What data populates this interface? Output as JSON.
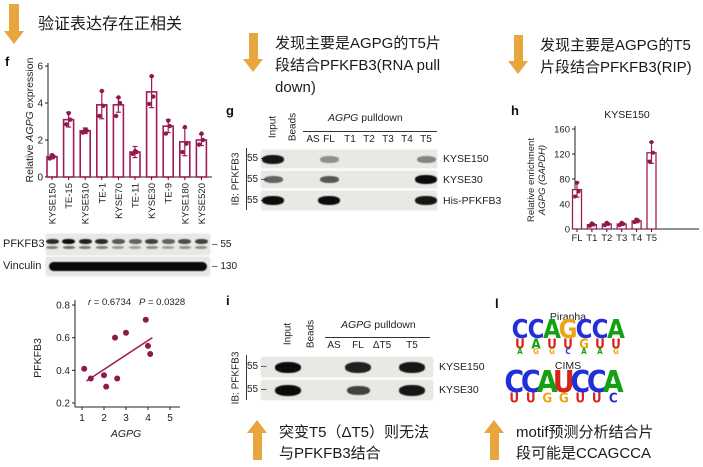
{
  "panels": {
    "f": "f",
    "g": "g",
    "h": "h",
    "i": "i",
    "l": "l"
  },
  "notes": {
    "top_left": {
      "lines": [
        "验证表达存在正相关"
      ]
    },
    "mid_top": {
      "lines": [
        "发现主要是AGPG的T5片",
        "段结合PFKFB3(RNA pull",
        "down)"
      ]
    },
    "right_top": {
      "lines": [
        "发现主要是AGPG的T5",
        "片段结合PFKFB3(RIP)"
      ]
    },
    "mid_bottom": {
      "lines": [
        "突变T5（ΔT5）则无法",
        "与PFKFB3结合"
      ]
    },
    "right_bottom": {
      "lines": [
        "motif预测分析结合片",
        "段可能是CCAGCCA"
      ]
    }
  },
  "chart_data": [
    {
      "id": "f_bar",
      "type": "bar",
      "ylabel_parts": [
        "Relative ",
        "AGPG",
        " expression"
      ],
      "categories": [
        "KYSE150",
        "TE-15",
        "KYSE510",
        "TE-1",
        "KYSE70",
        "TE-11",
        "KYSE30",
        "TE-9",
        "KYSE180",
        "KYSE520"
      ],
      "values": [
        1.1,
        3.1,
        2.5,
        3.9,
        3.9,
        1.35,
        4.6,
        2.75,
        1.9,
        2.0
      ],
      "errors": [
        0.12,
        0.4,
        0.15,
        0.75,
        0.4,
        0.3,
        0.85,
        0.35,
        0.75,
        0.3
      ],
      "points": [
        [
          1.0,
          1.1,
          1.18
        ],
        [
          2.85,
          3.1,
          3.45
        ],
        [
          2.4,
          2.5,
          2.55
        ],
        [
          3.3,
          3.85,
          4.65
        ],
        [
          3.3,
          4.0,
          4.3
        ],
        [
          1.25,
          1.35,
          1.4
        ],
        [
          3.95,
          4.35,
          5.45
        ],
        [
          2.35,
          2.75,
          3.05
        ],
        [
          1.35,
          1.8,
          2.7
        ],
        [
          1.75,
          2.0,
          2.35
        ]
      ],
      "ylim": [
        0,
        6
      ],
      "yticks": [
        0,
        2,
        4,
        6
      ]
    },
    {
      "id": "corr_scatter",
      "type": "scatter",
      "xlabel": "AGPG",
      "ylabel": "PFKFB3",
      "r_label": "r",
      "r_value": " = 0.6734",
      "p_label": "P",
      "p_value": " = 0.0328",
      "points": [
        [
          1.1,
          0.41
        ],
        [
          1.4,
          0.35
        ],
        [
          2.0,
          0.37
        ],
        [
          2.1,
          0.3
        ],
        [
          2.5,
          0.6
        ],
        [
          2.6,
          0.35
        ],
        [
          3.0,
          0.63
        ],
        [
          3.9,
          0.71
        ],
        [
          4.0,
          0.55
        ],
        [
          4.1,
          0.5
        ]
      ],
      "trendline": [
        [
          1.2,
          0.335
        ],
        [
          4.2,
          0.6
        ]
      ],
      "xlim": [
        0.6,
        5.4
      ],
      "ylim": [
        0.2,
        0.8
      ],
      "xticks": [
        1,
        2,
        3,
        4,
        5
      ],
      "yticks": [
        0.2,
        0.4,
        0.6,
        0.8
      ]
    },
    {
      "id": "h_bar",
      "type": "bar",
      "title": "KYSE150",
      "ylabel_line1": "Relative enrichment",
      "ylabel_line2": "AGPG (GAPDH)",
      "categories": [
        "FL",
        "T1",
        "T2",
        "T3",
        "T4",
        "T5"
      ],
      "values": [
        63,
        7,
        8,
        8,
        13,
        122
      ],
      "errors": [
        12,
        2,
        2,
        2,
        3,
        17
      ],
      "points": [
        [
          52,
          60,
          74
        ],
        [
          5,
          7,
          9
        ],
        [
          6,
          8,
          10
        ],
        [
          6,
          8,
          10
        ],
        [
          11,
          13,
          15
        ],
        [
          108,
          122,
          139
        ]
      ],
      "ylim": [
        0,
        160
      ],
      "yticks": [
        0,
        40,
        80,
        120,
        160
      ]
    }
  ],
  "blot_f": {
    "rows": [
      {
        "label": "PFKFB3",
        "marker_label": "– 55",
        "intensities": [
          0.85,
          1,
          0.9,
          0.85,
          0.65,
          0.6,
          0.75,
          0.6,
          0.7,
          0.75
        ],
        "continuous": false
      },
      {
        "label": "Vinculin",
        "marker_label": "– 130",
        "intensities": [],
        "continuous": true
      }
    ]
  },
  "panel_g": {
    "ib_label": "IB: PFKFB3",
    "header": {
      "italic": "AGPG",
      "rest": " pulldown"
    },
    "marker_label": "55 –",
    "lanes": [
      "Input",
      "Beads",
      "AS",
      "FL",
      "T1",
      "T2",
      "T3",
      "T4",
      "T5"
    ],
    "rows": [
      {
        "label": "KYSE150",
        "bands": {
          "Input": 0.95,
          "FL": 0.4,
          "T5": 0.45
        }
      },
      {
        "label": "KYSE30",
        "bands": {
          "Input": 0.6,
          "FL": 0.65,
          "T5": 1
        }
      },
      {
        "label": "His-PFKFB3",
        "bands": {
          "Input": 1,
          "FL": 1,
          "T5": 0.95
        }
      }
    ]
  },
  "panel_i": {
    "ib_label": "IB: PFKFB3",
    "header": {
      "italic": "AGPG",
      "rest": " pulldown"
    },
    "marker_label": "55 –",
    "lanes": [
      "Input",
      "Beads",
      "AS",
      "FL",
      "ΔT5",
      "T5"
    ],
    "rows": [
      {
        "label": "KYSE150",
        "bands": {
          "Input": 1,
          "FL": 0.9,
          "T5": 0.95
        }
      },
      {
        "label": "KYSE30",
        "bands": {
          "Input": 1,
          "FL": 0.75,
          "T5": 0.95
        }
      }
    ]
  },
  "panel_l": {
    "letter_colors": {
      "A": "#13a113",
      "C": "#2030d8",
      "G": "#eda411",
      "U": "#d6231c"
    },
    "logos": [
      {
        "title": "Piranha",
        "rows": [
          {
            "size": 23,
            "letters": [
              "C",
              "C",
              "A",
              "G",
              "C",
              "C",
              "A"
            ]
          },
          {
            "size": 12,
            "letters": [
              "U",
              "A",
              "U",
              "U",
              "G",
              "U",
              "U"
            ]
          },
          {
            "size": 7,
            "letters": [
              "A",
              "G",
              "G",
              "C",
              "A",
              "A",
              "G"
            ]
          }
        ]
      },
      {
        "title": "CIMS",
        "rows": [
          {
            "size": 27,
            "letters": [
              "C",
              "C",
              "A",
              "U",
              "C",
              "C",
              "A"
            ]
          },
          {
            "size": 12,
            "letters": [
              "U",
              "U",
              "G",
              "G",
              "U",
              "U",
              "C"
            ]
          }
        ]
      }
    ]
  },
  "colors": {
    "accent": "#a01c58",
    "dot": "#8e1a4c",
    "arrow": "#e7a63e",
    "axis": "#222"
  }
}
